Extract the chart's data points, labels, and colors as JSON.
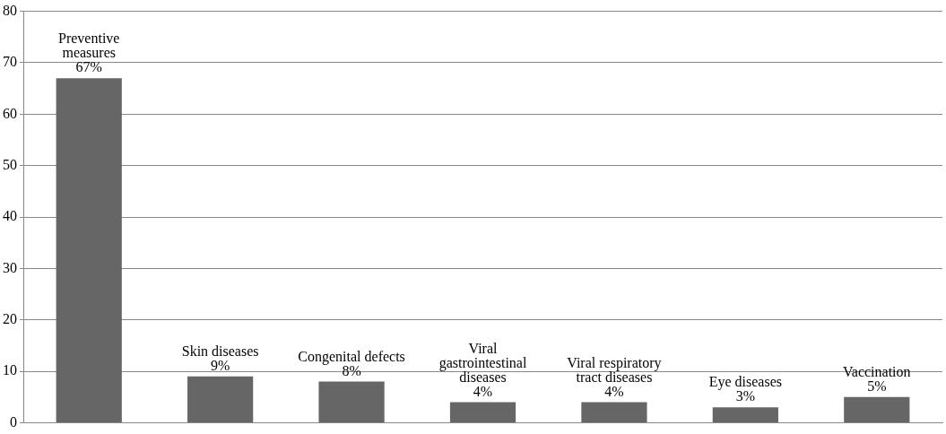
{
  "chart_data": {
    "type": "bar",
    "categories": [
      "Preventive measures",
      "Skin diseases",
      "Congenital defects",
      "Viral gastrointestinal diseases",
      "Viral respiratory tract diseases",
      "Eye diseases",
      "Vaccination"
    ],
    "values": [
      67,
      9,
      8,
      4,
      4,
      3,
      5
    ],
    "value_labels": [
      "67%",
      "9%",
      "8%",
      "4%",
      "4%",
      "3%",
      "5%"
    ],
    "color": "#666666",
    "ylim": [
      0,
      80
    ],
    "yticks": [
      0,
      10,
      20,
      30,
      40,
      50,
      60,
      70,
      80
    ],
    "grid": "y",
    "legend": false,
    "tick_labels": "y"
  }
}
